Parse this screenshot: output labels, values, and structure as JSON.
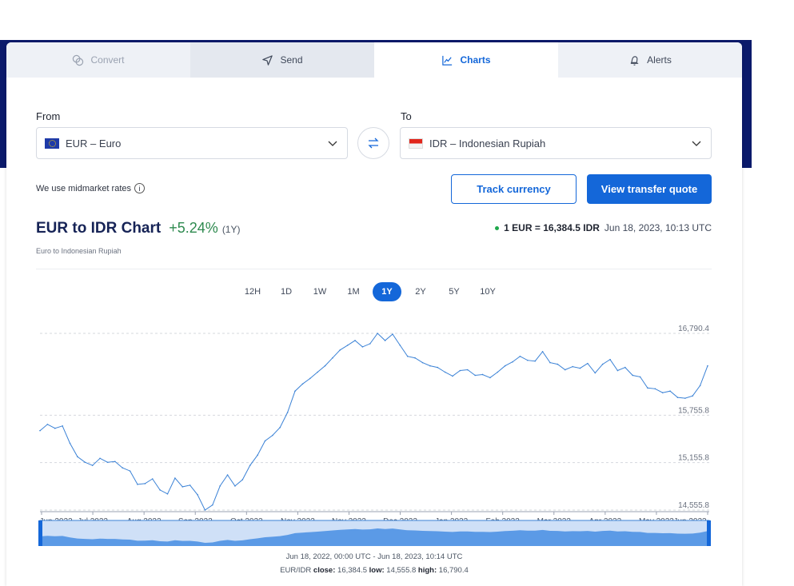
{
  "tabs": [
    {
      "label": "Convert",
      "icon": "convert-icon",
      "state": "disabled"
    },
    {
      "label": "Send",
      "icon": "send-icon",
      "state": "normal"
    },
    {
      "label": "Charts",
      "icon": "chart-icon",
      "state": "active"
    },
    {
      "label": "Alerts",
      "icon": "bell-icon",
      "state": "normal"
    }
  ],
  "from": {
    "label": "From",
    "value": "EUR – Euro"
  },
  "to": {
    "label": "To",
    "value": "IDR – Indonesian Rupiah"
  },
  "midmarket_text": "We use midmarket rates",
  "buttons": {
    "track": "Track currency",
    "quote": "View transfer quote"
  },
  "chart_header": {
    "title": "EUR to IDR Chart",
    "change": "+5.24%",
    "period": "(1Y)",
    "subtitle": "Euro to Indonesian Rupiah",
    "rate": "1 EUR = 16,384.5 IDR",
    "timestamp": "Jun 18, 2023, 10:13 UTC"
  },
  "periods": [
    "12H",
    "1D",
    "1W",
    "1M",
    "1Y",
    "2Y",
    "5Y",
    "10Y"
  ],
  "active_period": "1Y",
  "chart_data": {
    "type": "line",
    "title": "EUR to IDR Chart",
    "xlabel": "",
    "ylabel": "",
    "ylim": [
      14555.8,
      16790.4
    ],
    "y_ticks": [
      "16,790.4",
      "15,755.8",
      "15,155.8",
      "14,555.8"
    ],
    "y_tick_values": [
      16790.4,
      15755.8,
      15155.8,
      14555.8
    ],
    "x_ticks": [
      "Jun 2022",
      "Jul 2022",
      "Aug 2022",
      "Sep 2022",
      "Oct 2022",
      "Nov 2022",
      "Nov 2022",
      "Dec 2022",
      "Jan 2023",
      "Feb 2023",
      "Mar 2023",
      "Apr 2023",
      "May 2023",
      "Jun 2023"
    ],
    "series": [
      {
        "values": [
          15560,
          15640,
          15590,
          15620,
          15400,
          15230,
          15160,
          15120,
          15210,
          15160,
          15170,
          15090,
          15050,
          14880,
          14890,
          14950,
          14810,
          14760,
          14960,
          14850,
          14870,
          14750,
          14556,
          14620,
          14860,
          15000,
          14860,
          14940,
          15120,
          15250,
          15430,
          15500,
          15600,
          15790,
          16060,
          16150,
          16220,
          16300,
          16380,
          16480,
          16580,
          16640,
          16700,
          16620,
          16660,
          16790,
          16700,
          16780,
          16640,
          16500,
          16480,
          16420,
          16380,
          16360,
          16300,
          16250,
          16320,
          16330,
          16260,
          16270,
          16230,
          16300,
          16380,
          16430,
          16500,
          16450,
          16440,
          16560,
          16420,
          16400,
          16330,
          16370,
          16350,
          16410,
          16290,
          16400,
          16460,
          16320,
          16360,
          16260,
          16240,
          16100,
          16090,
          16040,
          16060,
          15980,
          15970,
          16000,
          16130,
          16380
        ]
      }
    ],
    "grid": true,
    "legend": "none"
  },
  "range_text": "Jun 18, 2022, 00:00 UTC - Jun 18, 2023, 10:14 UTC",
  "stats": {
    "prefix": "EUR/IDR",
    "close_label": "close:",
    "close": "16,384.5",
    "low_label": "low:",
    "low": "14,555.8",
    "high_label": "high:",
    "high": "16,790.4"
  },
  "colors": {
    "accent": "#1467d9",
    "positive": "#2e8a4f",
    "navy": "#0b1a6b"
  }
}
